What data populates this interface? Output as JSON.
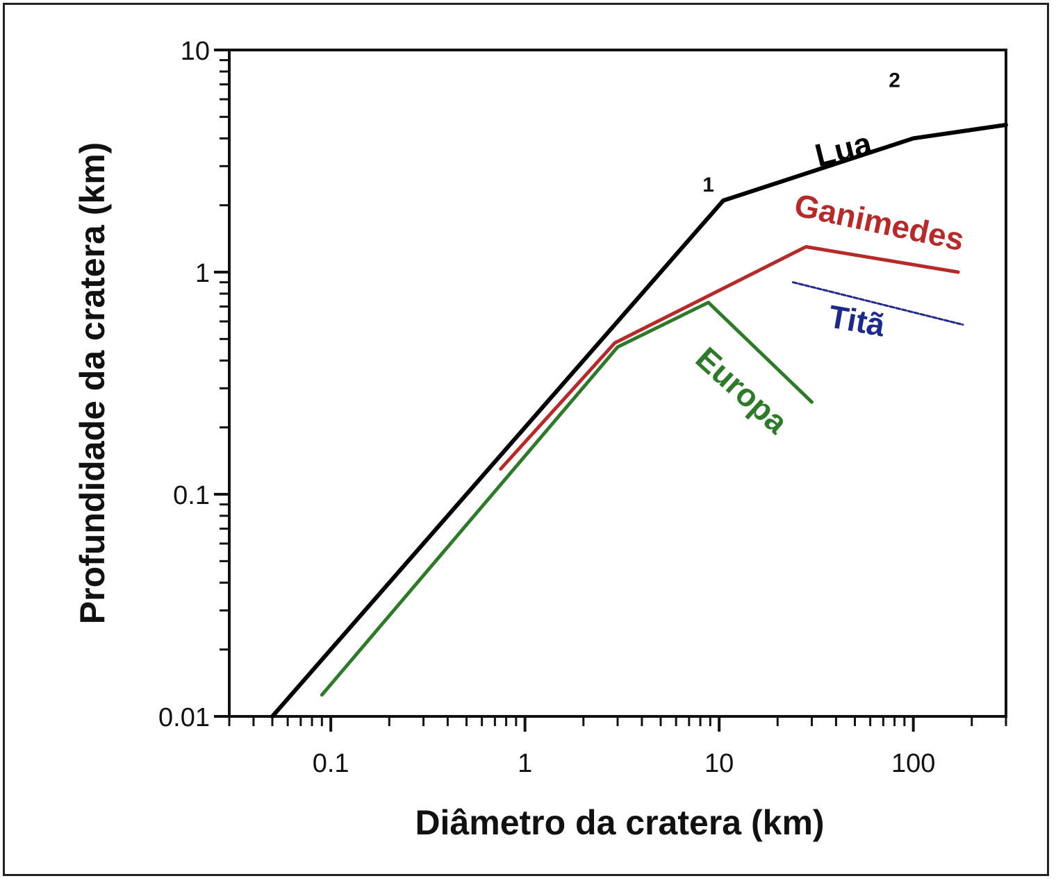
{
  "chart_data": {
    "type": "line",
    "title": "",
    "xlabel": "Diâmetro da cratera (km)",
    "ylabel": "Profundidade da cratera (km)",
    "x_scale": "log",
    "y_scale": "log",
    "xlim": [
      0.03,
      300
    ],
    "ylim": [
      0.01,
      10
    ],
    "grid": false,
    "x_ticks": [
      {
        "value": 0.1,
        "label": "0.1"
      },
      {
        "value": 1,
        "label": "1"
      },
      {
        "value": 10,
        "label": "10"
      },
      {
        "value": 100,
        "label": "100"
      }
    ],
    "y_ticks": [
      {
        "value": 0.01,
        "label": "0.01"
      },
      {
        "value": 0.1,
        "label": "0.1"
      },
      {
        "value": 1,
        "label": "1"
      },
      {
        "value": 10,
        "label": "10"
      }
    ],
    "series": [
      {
        "name": "Lua",
        "color": "#000000",
        "x": [
          0.05,
          10.5,
          100,
          300
        ],
        "y": [
          0.01,
          2.1,
          4.0,
          4.6
        ],
        "label_pos": {
          "x": 45,
          "y": 3.2,
          "rotate": -14
        }
      },
      {
        "name": "Ganimedes",
        "color": "#b52a2a",
        "x": [
          0.75,
          2.9,
          28,
          170
        ],
        "y": [
          0.13,
          0.48,
          1.3,
          1.0
        ],
        "label_pos": {
          "x": 65,
          "y": 1.5,
          "rotate": 12
        }
      },
      {
        "name": "Titã",
        "color": "#1e2a8a",
        "x": [
          24,
          180
        ],
        "y": [
          0.9,
          0.58
        ],
        "dashed": true,
        "label_pos": {
          "x": 50,
          "y": 0.54,
          "rotate": 10
        }
      },
      {
        "name": "Europa",
        "color": "#2f7a2a",
        "x": [
          0.09,
          3.0,
          8.8,
          30
        ],
        "y": [
          0.0125,
          0.46,
          0.73,
          0.26
        ],
        "label_pos": {
          "x": 12,
          "y": 0.27,
          "rotate": 42
        }
      }
    ],
    "annotations": [
      {
        "text": "1",
        "x": 8.8,
        "y": 2.3
      },
      {
        "text": "2",
        "x": 80,
        "y": 6.8
      }
    ]
  }
}
